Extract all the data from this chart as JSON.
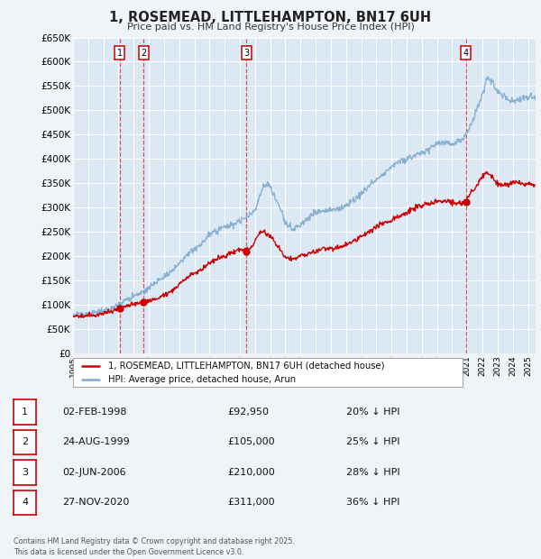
{
  "title": "1, ROSEMEAD, LITTLEHAMPTON, BN17 6UH",
  "subtitle": "Price paid vs. HM Land Registry's House Price Index (HPI)",
  "bg_color": "#f0f4f8",
  "plot_bg_color": "#dce8f4",
  "grid_color": "#ffffff",
  "line_color_red": "#cc0000",
  "line_color_blue": "#7faacc",
  "ylim": [
    0,
    650000
  ],
  "yticks": [
    0,
    50000,
    100000,
    150000,
    200000,
    250000,
    300000,
    350000,
    400000,
    450000,
    500000,
    550000,
    600000,
    650000
  ],
  "ytick_labels": [
    "£0",
    "£50K",
    "£100K",
    "£150K",
    "£200K",
    "£250K",
    "£300K",
    "£350K",
    "£400K",
    "£450K",
    "£500K",
    "£550K",
    "£600K",
    "£650K"
  ],
  "xlim_start": 1995.0,
  "xlim_end": 2025.5,
  "transactions": [
    {
      "num": 1,
      "date": "02-FEB-1998",
      "year": 1998.09,
      "price": 92950,
      "label": "20% ↓ HPI"
    },
    {
      "num": 2,
      "date": "24-AUG-1999",
      "year": 1999.65,
      "price": 105000,
      "label": "25% ↓ HPI"
    },
    {
      "num": 3,
      "date": "02-JUN-2006",
      "year": 2006.42,
      "price": 210000,
      "label": "28% ↓ HPI"
    },
    {
      "num": 4,
      "date": "27-NOV-2020",
      "year": 2020.91,
      "price": 311000,
      "label": "36% ↓ HPI"
    }
  ],
  "legend_label_red": "1, ROSEMEAD, LITTLEHAMPTON, BN17 6UH (detached house)",
  "legend_label_blue": "HPI: Average price, detached house, Arun",
  "footer": "Contains HM Land Registry data © Crown copyright and database right 2025.\nThis data is licensed under the Open Government Licence v3.0.",
  "table_rows": [
    {
      "num": 1,
      "date": "02-FEB-1998",
      "price": "£92,950",
      "hpi": "20% ↓ HPI"
    },
    {
      "num": 2,
      "date": "24-AUG-1999",
      "price": "£105,000",
      "hpi": "25% ↓ HPI"
    },
    {
      "num": 3,
      "date": "02-JUN-2006",
      "price": "£210,000",
      "hpi": "28% ↓ HPI"
    },
    {
      "num": 4,
      "date": "27-NOV-2020",
      "price": "£311,000",
      "hpi": "36% ↓ HPI"
    }
  ],
  "hpi_points": [
    [
      1995.0,
      80000
    ],
    [
      1995.5,
      82000
    ],
    [
      1996.0,
      83000
    ],
    [
      1996.5,
      85000
    ],
    [
      1997.0,
      87000
    ],
    [
      1997.5,
      92000
    ],
    [
      1998.0,
      100000
    ],
    [
      1998.5,
      110000
    ],
    [
      1999.0,
      118000
    ],
    [
      1999.5,
      125000
    ],
    [
      2000.0,
      135000
    ],
    [
      2000.5,
      148000
    ],
    [
      2001.0,
      158000
    ],
    [
      2001.5,
      170000
    ],
    [
      2002.0,
      185000
    ],
    [
      2002.5,
      200000
    ],
    [
      2003.0,
      215000
    ],
    [
      2003.5,
      228000
    ],
    [
      2004.0,
      245000
    ],
    [
      2004.5,
      255000
    ],
    [
      2005.0,
      260000
    ],
    [
      2005.5,
      265000
    ],
    [
      2006.0,
      272000
    ],
    [
      2006.5,
      280000
    ],
    [
      2007.0,
      295000
    ],
    [
      2007.5,
      340000
    ],
    [
      2007.8,
      350000
    ],
    [
      2008.0,
      340000
    ],
    [
      2008.5,
      310000
    ],
    [
      2009.0,
      270000
    ],
    [
      2009.5,
      255000
    ],
    [
      2010.0,
      265000
    ],
    [
      2010.5,
      278000
    ],
    [
      2011.0,
      290000
    ],
    [
      2011.5,
      295000
    ],
    [
      2012.0,
      295000
    ],
    [
      2012.5,
      298000
    ],
    [
      2013.0,
      305000
    ],
    [
      2013.5,
      315000
    ],
    [
      2014.0,
      330000
    ],
    [
      2014.5,
      345000
    ],
    [
      2015.0,
      358000
    ],
    [
      2015.5,
      372000
    ],
    [
      2016.0,
      385000
    ],
    [
      2016.5,
      395000
    ],
    [
      2017.0,
      400000
    ],
    [
      2017.5,
      405000
    ],
    [
      2018.0,
      415000
    ],
    [
      2018.5,
      420000
    ],
    [
      2019.0,
      430000
    ],
    [
      2019.5,
      435000
    ],
    [
      2020.0,
      430000
    ],
    [
      2020.5,
      435000
    ],
    [
      2021.0,
      455000
    ],
    [
      2021.5,
      490000
    ],
    [
      2022.0,
      530000
    ],
    [
      2022.3,
      570000
    ],
    [
      2022.6,
      560000
    ],
    [
      2022.9,
      545000
    ],
    [
      2023.2,
      535000
    ],
    [
      2023.5,
      525000
    ],
    [
      2023.8,
      520000
    ],
    [
      2024.0,
      518000
    ],
    [
      2024.3,
      520000
    ],
    [
      2024.6,
      525000
    ],
    [
      2024.9,
      528000
    ],
    [
      2025.2,
      530000
    ],
    [
      2025.5,
      528000
    ]
  ],
  "red_points": [
    [
      1995.0,
      75000
    ],
    [
      1995.5,
      77000
    ],
    [
      1996.0,
      78000
    ],
    [
      1996.5,
      80000
    ],
    [
      1997.0,
      82000
    ],
    [
      1997.5,
      85000
    ],
    [
      1998.09,
      92950
    ],
    [
      1998.5,
      98000
    ],
    [
      1999.0,
      100000
    ],
    [
      1999.65,
      105000
    ],
    [
      2000.0,
      108000
    ],
    [
      2000.5,
      112000
    ],
    [
      2001.0,
      118000
    ],
    [
      2001.5,
      128000
    ],
    [
      2002.0,
      142000
    ],
    [
      2002.5,
      155000
    ],
    [
      2003.0,
      165000
    ],
    [
      2003.5,
      175000
    ],
    [
      2004.0,
      185000
    ],
    [
      2004.5,
      195000
    ],
    [
      2005.0,
      200000
    ],
    [
      2005.5,
      208000
    ],
    [
      2006.0,
      215000
    ],
    [
      2006.42,
      210000
    ],
    [
      2006.8,
      220000
    ],
    [
      2007.3,
      248000
    ],
    [
      2007.6,
      252000
    ],
    [
      2008.0,
      240000
    ],
    [
      2008.5,
      220000
    ],
    [
      2009.0,
      198000
    ],
    [
      2009.5,
      195000
    ],
    [
      2010.0,
      200000
    ],
    [
      2010.5,
      205000
    ],
    [
      2011.0,
      210000
    ],
    [
      2011.5,
      215000
    ],
    [
      2012.0,
      215000
    ],
    [
      2012.5,
      218000
    ],
    [
      2013.0,
      222000
    ],
    [
      2013.5,
      230000
    ],
    [
      2014.0,
      240000
    ],
    [
      2014.5,
      250000
    ],
    [
      2015.0,
      260000
    ],
    [
      2015.5,
      268000
    ],
    [
      2016.0,
      275000
    ],
    [
      2016.5,
      282000
    ],
    [
      2017.0,
      290000
    ],
    [
      2017.5,
      298000
    ],
    [
      2018.0,
      305000
    ],
    [
      2018.5,
      308000
    ],
    [
      2019.0,
      312000
    ],
    [
      2019.5,
      315000
    ],
    [
      2020.0,
      310000
    ],
    [
      2020.5,
      308000
    ],
    [
      2020.91,
      311000
    ],
    [
      2021.0,
      320000
    ],
    [
      2021.5,
      340000
    ],
    [
      2022.0,
      362000
    ],
    [
      2022.3,
      372000
    ],
    [
      2022.5,
      368000
    ],
    [
      2022.8,
      355000
    ],
    [
      2023.0,
      348000
    ],
    [
      2023.3,
      345000
    ],
    [
      2023.6,
      348000
    ],
    [
      2023.9,
      350000
    ],
    [
      2024.2,
      352000
    ],
    [
      2024.5,
      350000
    ],
    [
      2024.8,
      348000
    ],
    [
      2025.0,
      347000
    ],
    [
      2025.3,
      348000
    ],
    [
      2025.5,
      347000
    ]
  ]
}
